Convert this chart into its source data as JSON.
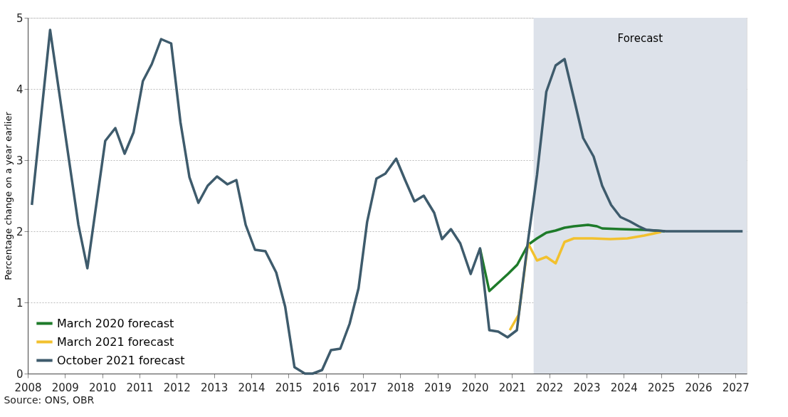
{
  "chart_data": {
    "type": "line",
    "ylabel": "Percentage change on a year earlier",
    "xlim": [
      2008,
      2027.3
    ],
    "xticks": [
      2008,
      2009,
      2010,
      2011,
      2012,
      2013,
      2014,
      2015,
      2016,
      2017,
      2018,
      2019,
      2020,
      2021,
      2022,
      2023,
      2024,
      2025,
      2026,
      2027
    ],
    "ylim": [
      0,
      5
    ],
    "yticks": [
      0,
      1,
      2,
      3,
      4,
      5
    ],
    "grid": "y",
    "legend": "bottom left",
    "line_style": "solid",
    "marker": "none",
    "bands": [
      {
        "axis": "x",
        "from": 2021.58,
        "to": 2027.3,
        "label": "Forecast",
        "color": "#dde2ea"
      }
    ],
    "annotations": [
      "Source: ONS, OBR"
    ],
    "series": [
      {
        "name": "March 2020 forecast",
        "color": "#1e7b2a",
        "x": [
          2020.14,
          2020.39,
          2020.64,
          2020.89,
          2021.14,
          2021.43,
          2021.67,
          2021.92,
          2022.17,
          2022.41,
          2022.66,
          2023.04,
          2023.28,
          2023.42,
          2023.91,
          2024.55,
          2025.1
        ],
        "values": [
          1.76,
          1.16,
          1.28,
          1.4,
          1.53,
          1.81,
          1.9,
          1.98,
          2.01,
          2.05,
          2.07,
          2.09,
          2.07,
          2.04,
          2.03,
          2.02,
          2.0
        ]
      },
      {
        "name": "March 2021 forecast",
        "color": "#f2c12e",
        "x": [
          2020.94,
          2021.18,
          2021.43,
          2021.67,
          2021.92,
          2022.17,
          2022.41,
          2022.66,
          2023.15,
          2023.64,
          2024.1,
          2024.55,
          2025.0
        ],
        "values": [
          0.61,
          0.83,
          1.83,
          1.59,
          1.64,
          1.55,
          1.85,
          1.9,
          1.9,
          1.89,
          1.9,
          1.94,
          1.99
        ]
      },
      {
        "name": "October 2021 forecast",
        "color": "#3e5b6c",
        "x": [
          2008.11,
          2008.6,
          2009.36,
          2009.6,
          2010.08,
          2010.35,
          2010.6,
          2010.84,
          2011.09,
          2011.33,
          2011.58,
          2011.85,
          2012.1,
          2012.34,
          2012.58,
          2012.83,
          2013.08,
          2013.36,
          2013.6,
          2013.85,
          2014.1,
          2014.38,
          2014.67,
          2014.91,
          2015.16,
          2015.44,
          2015.65,
          2015.9,
          2016.14,
          2016.39,
          2016.64,
          2016.88,
          2017.11,
          2017.36,
          2017.6,
          2017.89,
          2018.13,
          2018.38,
          2018.63,
          2018.91,
          2019.12,
          2019.36,
          2019.61,
          2019.89,
          2020.14,
          2020.39,
          2020.63,
          2020.88,
          2021.13,
          2021.43,
          2021.67,
          2021.92,
          2022.17,
          2022.41,
          2022.66,
          2022.91,
          2023.19,
          2023.42,
          2023.66,
          2023.91,
          2024.16,
          2024.4,
          2024.61,
          2025.14,
          2027.19
        ],
        "values": [
          2.37,
          4.83,
          2.09,
          1.48,
          3.27,
          3.45,
          3.09,
          3.39,
          4.11,
          4.35,
          4.7,
          4.64,
          3.53,
          2.76,
          2.4,
          2.64,
          2.77,
          2.66,
          2.72,
          2.09,
          1.74,
          1.72,
          1.42,
          0.94,
          0.09,
          0.0,
          0.0,
          0.05,
          0.33,
          0.35,
          0.7,
          1.2,
          2.13,
          2.74,
          2.81,
          3.02,
          2.72,
          2.42,
          2.5,
          2.26,
          1.89,
          2.03,
          1.83,
          1.4,
          1.76,
          0.61,
          0.59,
          0.51,
          0.61,
          1.87,
          2.79,
          3.96,
          4.33,
          4.42,
          3.87,
          3.31,
          3.05,
          2.64,
          2.37,
          2.2,
          2.14,
          2.07,
          2.02,
          2.0,
          2.0
        ]
      }
    ]
  }
}
